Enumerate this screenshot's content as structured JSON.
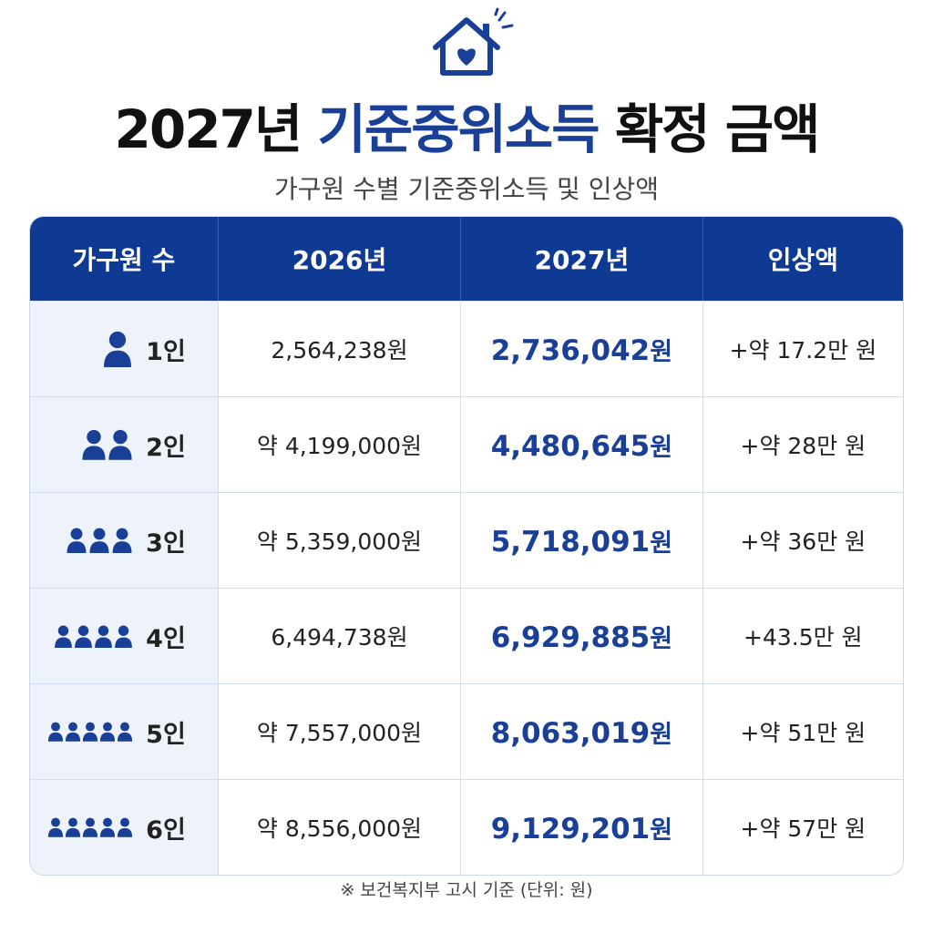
{
  "header": {
    "title_parts": [
      "2027년",
      "기준중위소득",
      "확정 금액"
    ],
    "subtitle": "가구원 수별 기준중위소득 및 인상액"
  },
  "table": {
    "columns": [
      "가구원 수",
      "2026년",
      "2027년",
      "인상액"
    ],
    "rows": [
      {
        "household": "1인",
        "y2026": "2,564,238원",
        "y2027": {
          "amount": "2,736,042",
          "unit": "원"
        },
        "increase": "+약 17.2만 원"
      },
      {
        "household": "2인",
        "y2026": "약 4,199,000원",
        "y2027": {
          "amount": "4,480,645",
          "unit": "원"
        },
        "increase": "+약 28만 원"
      },
      {
        "household": "3인",
        "y2026": "약 5,359,000원",
        "y2027": {
          "amount": "5,718,091",
          "unit": "원"
        },
        "increase": "+약 36만 원"
      },
      {
        "household": "4인",
        "y2026": "6,494,738원",
        "y2027": {
          "amount": "6,929,885",
          "unit": "원"
        },
        "increase": "+43.5만 원"
      },
      {
        "household": "5인",
        "y2026": "약 7,557,000원",
        "y2027": {
          "amount": "8,063,019",
          "unit": "원"
        },
        "increase": "+약 51만 원"
      },
      {
        "household": "6인",
        "y2026": "약 8,556,000원",
        "y2027": {
          "amount": "9,129,201",
          "unit": "원"
        },
        "increase": "+약 57만 원"
      }
    ]
  },
  "footnote": "※ 보건복지부 고시 기준 (단위: 원)"
}
